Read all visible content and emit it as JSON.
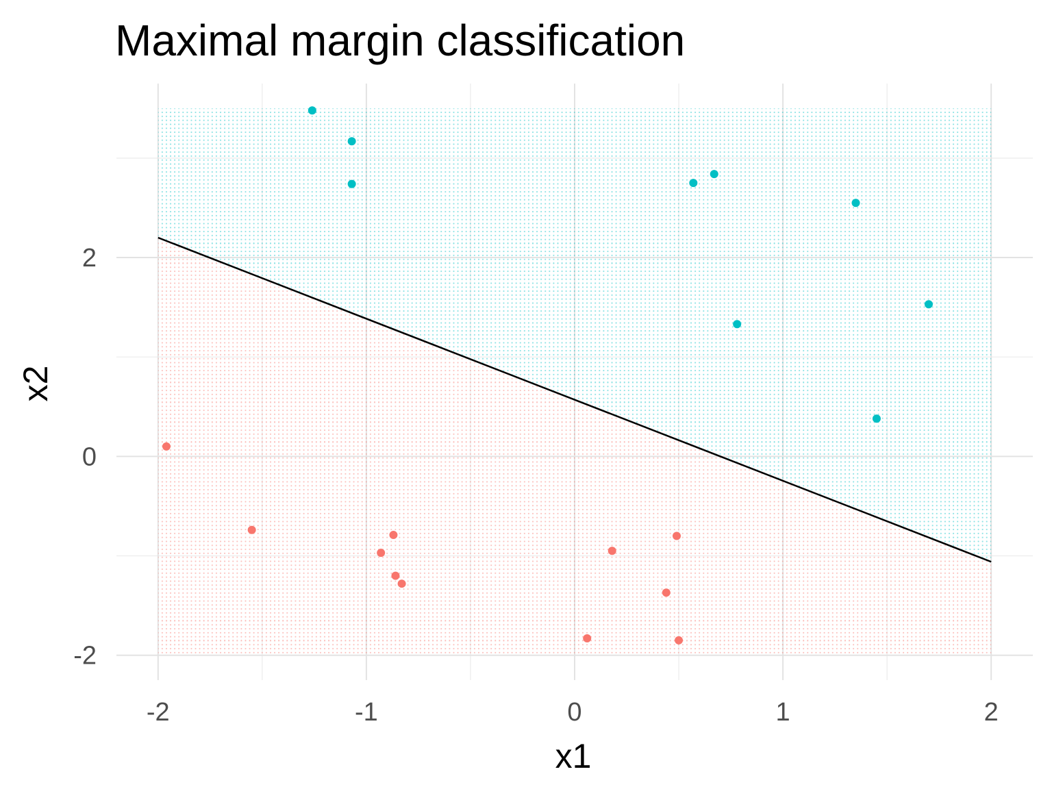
{
  "chart_data": {
    "type": "scatter",
    "title": "Maximal margin classification",
    "xlabel": "x1",
    "ylabel": "x2",
    "xlim": [
      -2.2,
      2.2
    ],
    "ylim": [
      -2.25,
      3.75
    ],
    "x_ticks": [
      -2,
      -1,
      0,
      1,
      2
    ],
    "y_ticks": [
      -2,
      0,
      2
    ],
    "grid": true,
    "colors": {
      "class_a": "#F8766D",
      "class_b": "#00BFC4",
      "boundary": "#000000"
    },
    "background_grid": {
      "x_range": [
        -2,
        2
      ],
      "y_range": [
        -2,
        3.5
      ],
      "description": "predicted class region points"
    },
    "decision_boundary": {
      "x": [
        -2,
        2
      ],
      "y": [
        2.2,
        -1.06
      ]
    },
    "series": [
      {
        "color": "#F8766D",
        "points": [
          {
            "x": -1.96,
            "y": 0.1
          },
          {
            "x": -1.55,
            "y": -0.74
          },
          {
            "x": -0.93,
            "y": -0.97
          },
          {
            "x": -0.87,
            "y": -0.79
          },
          {
            "x": -0.86,
            "y": -1.2
          },
          {
            "x": -0.83,
            "y": -1.28
          },
          {
            "x": 0.06,
            "y": -1.83
          },
          {
            "x": 0.18,
            "y": -0.95
          },
          {
            "x": 0.44,
            "y": -1.37
          },
          {
            "x": 0.49,
            "y": -0.8
          },
          {
            "x": 0.5,
            "y": -1.85
          }
        ]
      },
      {
        "color": "#00BFC4",
        "points": [
          {
            "x": -1.26,
            "y": 3.48
          },
          {
            "x": -1.07,
            "y": 3.17
          },
          {
            "x": -1.07,
            "y": 2.74
          },
          {
            "x": 0.57,
            "y": 2.75
          },
          {
            "x": 0.67,
            "y": 2.84
          },
          {
            "x": 0.78,
            "y": 1.33
          },
          {
            "x": 1.35,
            "y": 2.55
          },
          {
            "x": 1.45,
            "y": 0.38
          },
          {
            "x": 1.7,
            "y": 1.53
          }
        ]
      }
    ]
  }
}
